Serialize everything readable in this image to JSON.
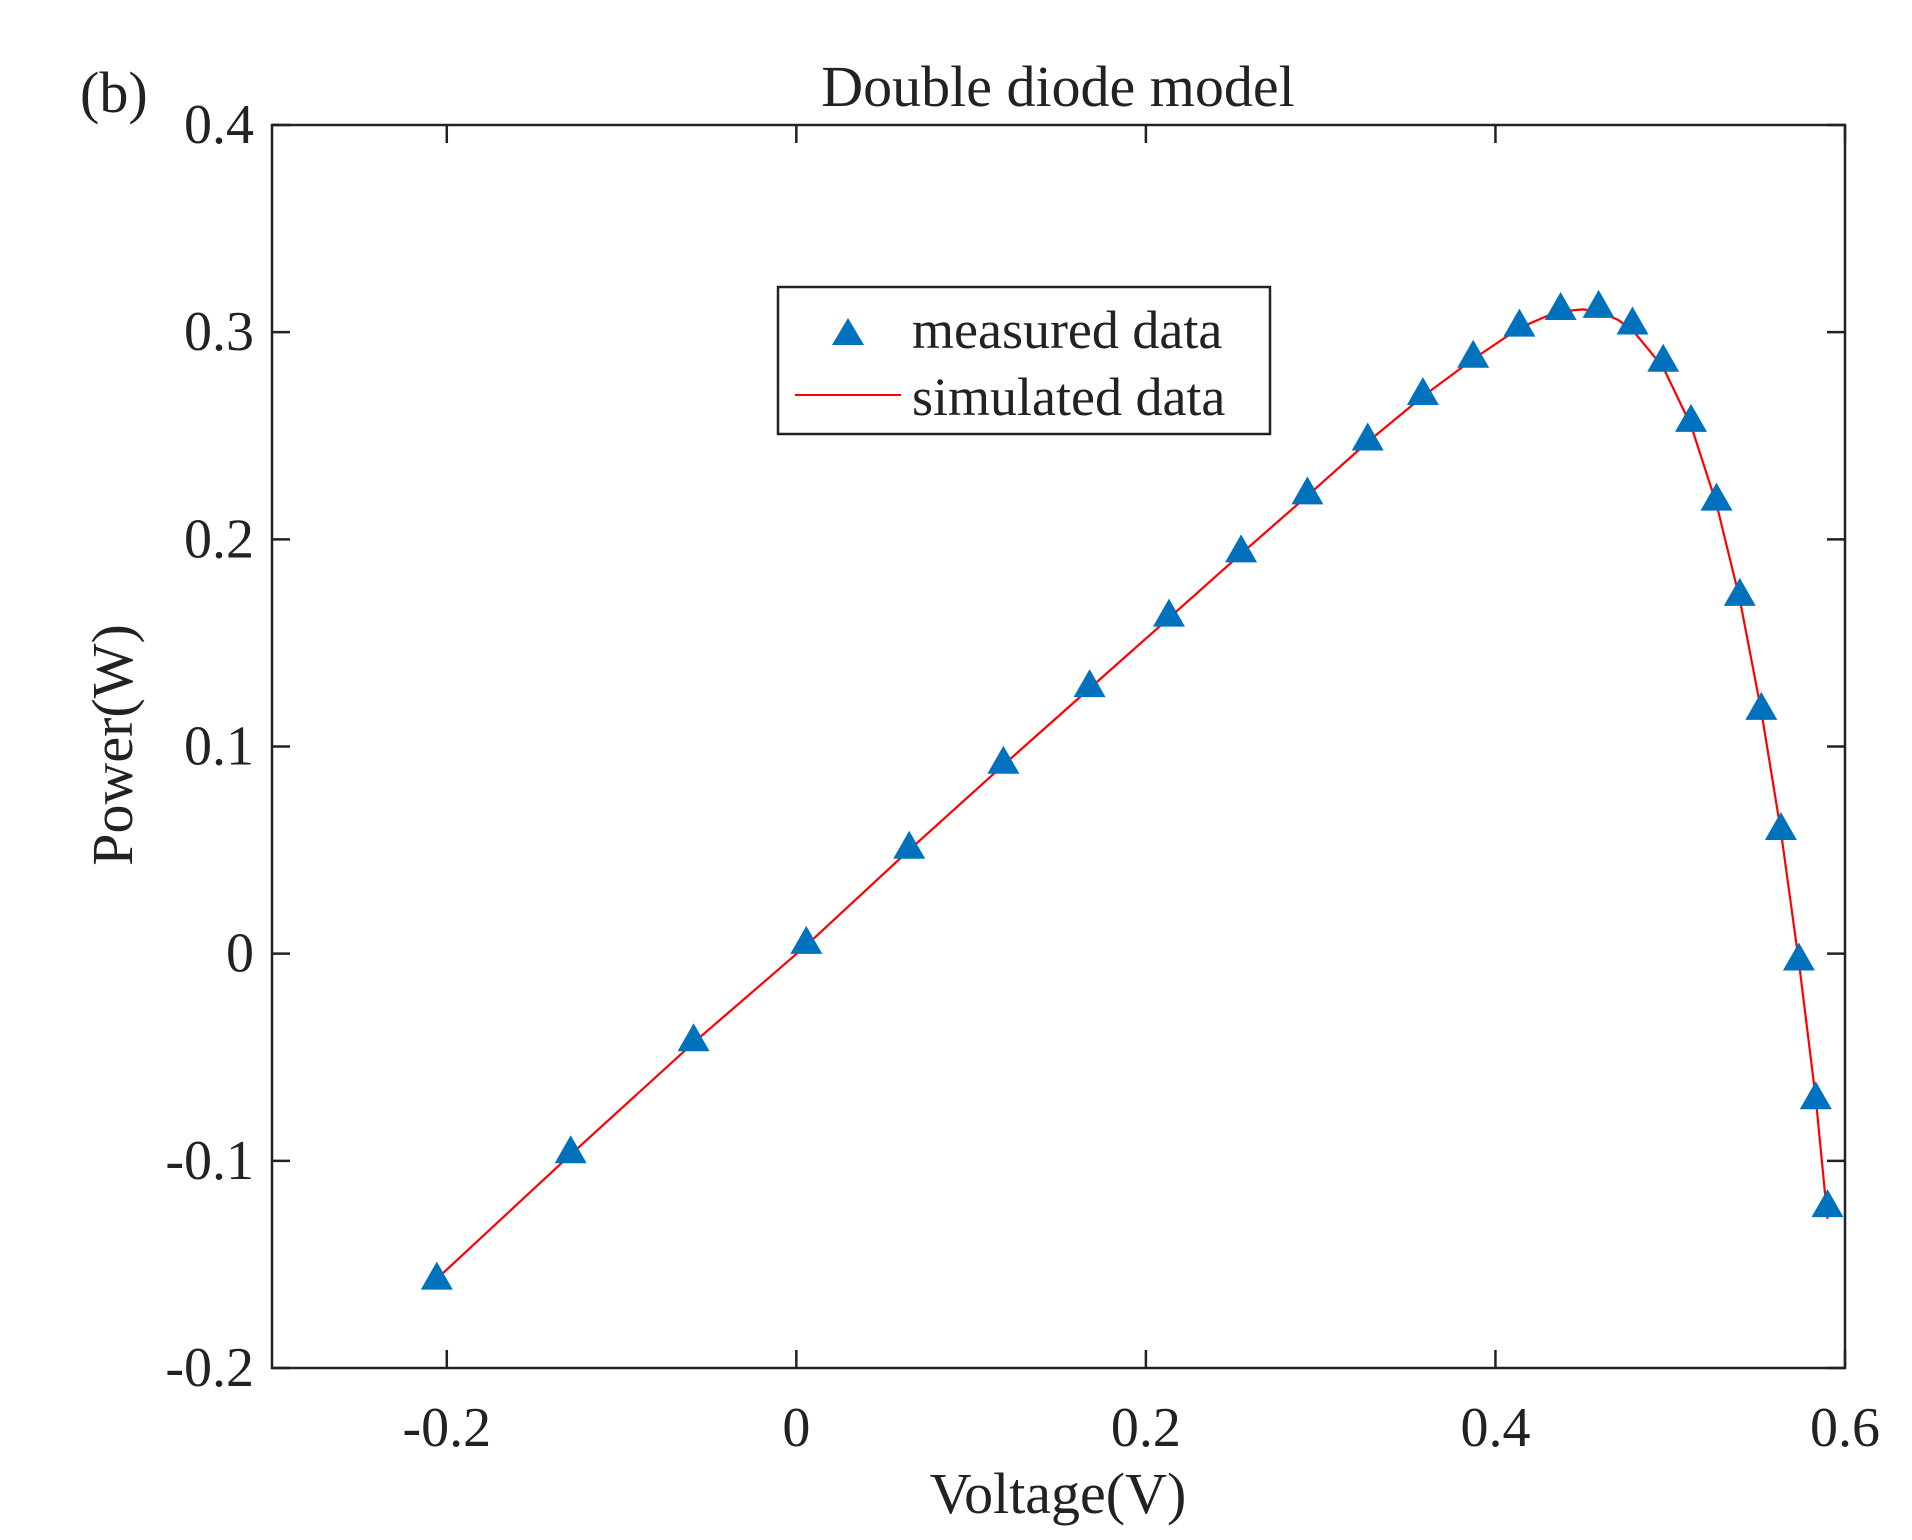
{
  "panel_label": "(b)",
  "colors": {
    "marker": "#0072BD",
    "line": "#FF0000",
    "axis": "#222222"
  },
  "chart_data": {
    "type": "line",
    "title": "Double diode model",
    "xlabel": "Voltage(V)",
    "ylabel": "Power(W)",
    "xlim": [
      -0.3,
      0.6
    ],
    "ylim": [
      -0.2,
      0.4
    ],
    "xticks": [
      -0.2,
      0,
      0.2,
      0.4,
      0.6
    ],
    "xtick_labels": [
      "-0.2",
      "0",
      "0.2",
      "0.4",
      "0.6"
    ],
    "yticks": [
      -0.2,
      -0.1,
      0,
      0.1,
      0.2,
      0.3,
      0.4
    ],
    "ytick_labels": [
      "-0.2",
      "-0.1",
      "0",
      "0.1",
      "0.2",
      "0.3",
      "0.4"
    ],
    "grid": false,
    "legend": "upper-center",
    "series": [
      {
        "name": "measured data",
        "style": "marker-triangle",
        "x": [
          -0.2057,
          -0.1291,
          -0.0588,
          0.0057,
          0.0646,
          0.1185,
          0.1678,
          0.2132,
          0.2545,
          0.2924,
          0.3269,
          0.3585,
          0.3873,
          0.4137,
          0.4373,
          0.459,
          0.4784,
          0.496,
          0.5119,
          0.5265,
          0.5398,
          0.5521,
          0.5633,
          0.5736,
          0.5833,
          0.59
        ],
        "y": [
          -0.157,
          -0.096,
          -0.042,
          0.005,
          0.051,
          0.092,
          0.129,
          0.163,
          0.194,
          0.222,
          0.248,
          0.27,
          0.288,
          0.303,
          0.311,
          0.312,
          0.304,
          0.286,
          0.257,
          0.219,
          0.173,
          0.118,
          0.06,
          -0.003,
          -0.07,
          -0.122
        ]
      },
      {
        "name": "simulated data",
        "style": "line",
        "x": [
          -0.2057,
          -0.1291,
          -0.0588,
          0.0057,
          0.0646,
          0.1185,
          0.1678,
          0.2132,
          0.2545,
          0.2924,
          0.3269,
          0.3585,
          0.3873,
          0.4137,
          0.43,
          0.4373,
          0.45,
          0.459,
          0.47,
          0.4784,
          0.496,
          0.5119,
          0.5265,
          0.5398,
          0.5521,
          0.5633,
          0.5736,
          0.5833,
          0.59
        ],
        "y": [
          -0.157,
          -0.097,
          -0.043,
          0.004,
          0.05,
          0.091,
          0.128,
          0.162,
          0.193,
          0.221,
          0.247,
          0.269,
          0.287,
          0.302,
          0.308,
          0.31,
          0.311,
          0.31,
          0.306,
          0.301,
          0.283,
          0.255,
          0.217,
          0.171,
          0.117,
          0.059,
          -0.004,
          -0.07,
          -0.128
        ]
      }
    ]
  }
}
